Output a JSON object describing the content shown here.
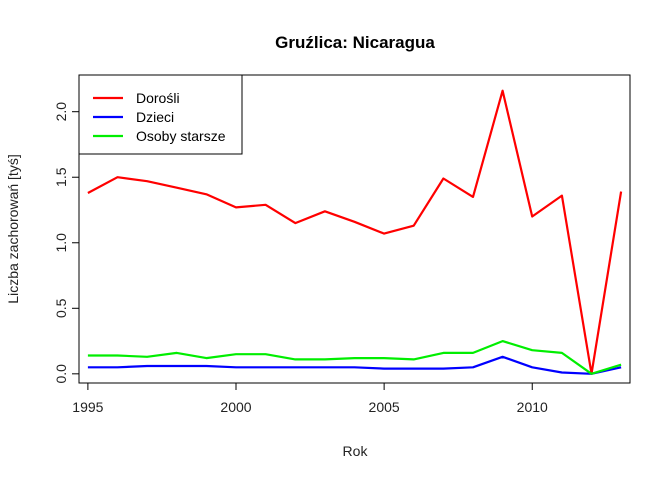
{
  "chart_data": {
    "type": "line",
    "title": "Gruźlica: Nicaragua",
    "xlabel": "Rok",
    "ylabel": "Liczba zachorowań [tyś]",
    "xlim": [
      1994.7,
      2013.3
    ],
    "ylim": [
      -0.07,
      2.28
    ],
    "xticks": [
      1995,
      2000,
      2005,
      2010
    ],
    "yticks": [
      0.0,
      0.5,
      1.0,
      1.5,
      2.0
    ],
    "ytick_labels": [
      "0.0",
      "0.5",
      "1.0",
      "1.5",
      "2.0"
    ],
    "legend_position": "top-left",
    "grid": false,
    "x": [
      1995,
      1996,
      1997,
      1998,
      1999,
      2000,
      2001,
      2002,
      2003,
      2004,
      2005,
      2006,
      2007,
      2008,
      2009,
      2010,
      2011,
      2012,
      2013
    ],
    "series": [
      {
        "name": "Dorośli",
        "color": "#ff0000",
        "values": [
          1.38,
          1.5,
          1.47,
          1.42,
          1.37,
          1.27,
          1.29,
          1.15,
          1.24,
          1.16,
          1.07,
          1.13,
          1.49,
          1.35,
          2.16,
          1.2,
          1.36,
          0.0,
          1.39
        ]
      },
      {
        "name": "Dzieci",
        "color": "#0000ff",
        "values": [
          0.05,
          0.05,
          0.06,
          0.06,
          0.06,
          0.05,
          0.05,
          0.05,
          0.05,
          0.05,
          0.04,
          0.04,
          0.04,
          0.05,
          0.13,
          0.05,
          0.01,
          0.0,
          0.05
        ]
      },
      {
        "name": "Osoby starsze",
        "color": "#00ee00",
        "values": [
          0.14,
          0.14,
          0.13,
          0.16,
          0.12,
          0.15,
          0.15,
          0.11,
          0.11,
          0.12,
          0.12,
          0.11,
          0.16,
          0.16,
          0.25,
          0.18,
          0.16,
          0.0,
          0.07
        ]
      }
    ]
  }
}
